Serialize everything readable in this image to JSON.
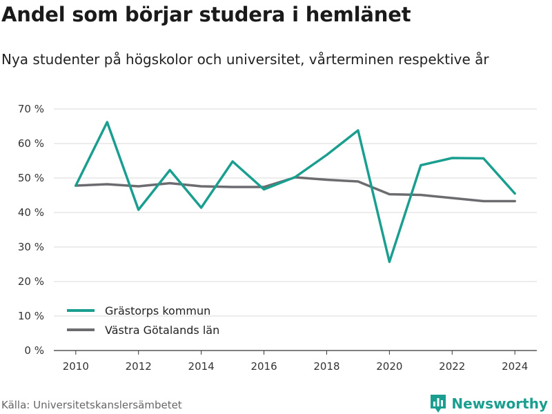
{
  "header": {
    "title": "Andel som börjar studera i hemlänet",
    "subtitle": "Nya studenter på högskolor och universitet, vårterminen respektive år"
  },
  "chart_data": {
    "type": "line",
    "x": [
      2010,
      2011,
      2012,
      2013,
      2014,
      2015,
      2016,
      2017,
      2018,
      2019,
      2020,
      2021,
      2022,
      2023,
      2024
    ],
    "series": [
      {
        "name": "Grästorps kommun",
        "color": "#1a9e8f",
        "values": [
          47.8,
          66.2,
          40.8,
          52.3,
          41.4,
          54.8,
          46.7,
          50.3,
          56.7,
          63.8,
          25.7,
          53.7,
          55.8,
          55.7,
          45.5
        ]
      },
      {
        "name": "Västra Götalands län",
        "color": "#6b6b70",
        "values": [
          47.8,
          48.2,
          47.6,
          48.5,
          47.6,
          47.4,
          47.4,
          50.2,
          49.5,
          49.0,
          45.3,
          45.1,
          44.2,
          43.3,
          43.3
        ]
      }
    ],
    "xticks": [
      2010,
      2012,
      2014,
      2016,
      2018,
      2020,
      2022,
      2024
    ],
    "xlim": [
      2009.3,
      2024.7
    ],
    "yticks": [
      0,
      10,
      20,
      30,
      40,
      50,
      60,
      70
    ],
    "ytick_labels": [
      "0 %",
      "10 %",
      "20 %",
      "30 %",
      "40 %",
      "50 %",
      "60 %",
      "70 %"
    ],
    "ylim": [
      0,
      70
    ],
    "grid": true,
    "legend_position": "bottom-left"
  },
  "footer": {
    "source": "Källa: Universitetskanslersämbetet",
    "brand": "Newsworthy",
    "brand_icon": "bar-chart-icon"
  }
}
